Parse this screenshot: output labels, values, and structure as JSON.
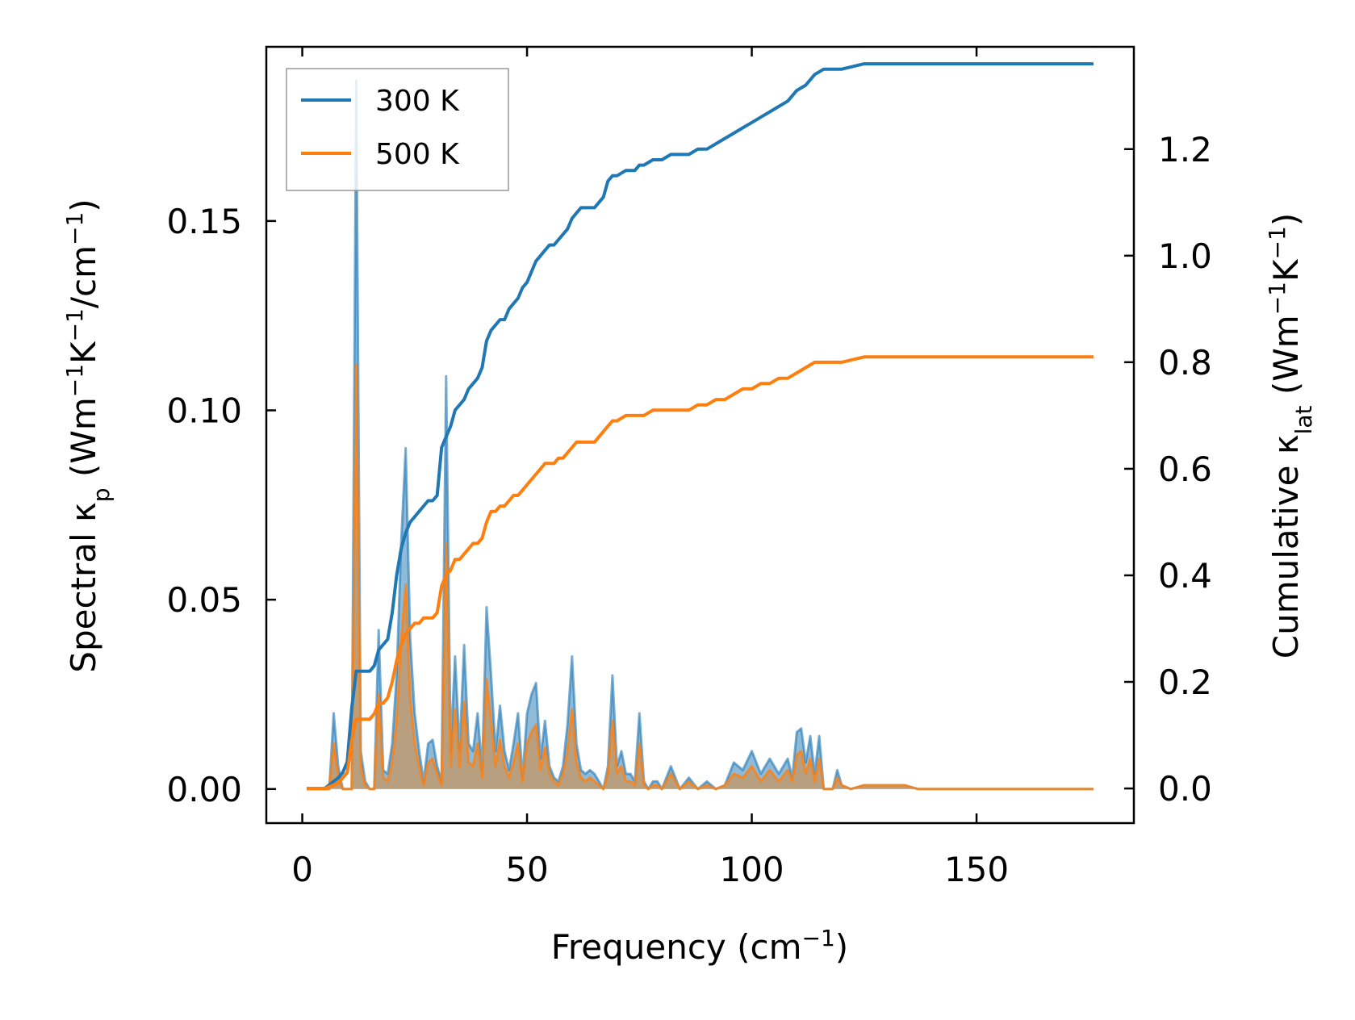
{
  "chart_data": {
    "type": "line",
    "title": "",
    "xlabel": "Frequency (cm⁻¹)",
    "ylabel_left": "Spectral κₚ (Wm⁻¹K⁻¹/cm⁻¹)",
    "ylabel_right": "Cumulative κ_lat (Wm⁻¹K⁻¹)",
    "xlim": [
      -8,
      185
    ],
    "ylim_left": [
      -0.009,
      0.196
    ],
    "ylim_right": [
      -0.065,
      1.392
    ],
    "xticks": [
      0,
      50,
      100,
      150
    ],
    "yticks_left": [
      0.0,
      0.05,
      0.1,
      0.15
    ],
    "yticks_right": [
      0.0,
      0.2,
      0.4,
      0.6,
      0.8,
      1.0,
      1.2
    ],
    "xtick_labels": [
      "0",
      "50",
      "100",
      "150"
    ],
    "ytick_labels_left": [
      "0.00",
      "0.05",
      "0.10",
      "0.15"
    ],
    "ytick_labels_right": [
      "0.0",
      "0.2",
      "0.4",
      "0.6",
      "0.8",
      "1.0",
      "1.2"
    ],
    "legend": {
      "location": "top-left",
      "entries": [
        "300 K",
        "500 K"
      ]
    },
    "colors": {
      "300K": "#1f77b4",
      "500K": "#ff7f0e",
      "fill_overlap": "#bf9a6e"
    },
    "spectral_x": [
      1,
      5,
      6,
      7,
      8,
      9,
      10,
      11,
      12,
      13,
      14,
      15,
      16,
      17,
      18,
      19,
      20,
      21,
      22,
      23,
      24,
      25,
      26,
      27,
      28,
      29,
      30,
      31,
      32,
      33,
      34,
      35,
      36,
      37,
      38,
      39,
      40,
      41,
      42,
      43,
      44,
      45,
      46,
      47,
      48,
      49,
      50,
      51,
      52,
      53,
      54,
      55,
      56,
      57,
      58,
      59,
      60,
      61,
      62,
      63,
      64,
      65,
      66,
      67,
      68,
      69,
      70,
      71,
      72,
      73,
      74,
      75,
      76,
      77,
      78,
      79,
      80,
      82,
      84,
      86,
      88,
      90,
      92,
      94,
      96,
      98,
      100,
      102,
      104,
      106,
      108,
      109,
      110,
      111,
      112,
      113,
      114,
      115,
      116,
      117,
      118,
      119,
      120,
      122,
      125,
      128,
      131,
      134,
      137,
      140,
      150,
      160,
      170,
      176
    ],
    "spectral_300K": [
      0.0,
      0.0,
      0.0,
      0.02,
      0.006,
      0.0,
      0.0,
      0.0,
      0.187,
      0.01,
      0.002,
      0.0,
      0.0,
      0.042,
      0.005,
      0.004,
      0.012,
      0.03,
      0.065,
      0.09,
      0.04,
      0.02,
      0.01,
      0.002,
      0.012,
      0.013,
      0.006,
      0.002,
      0.109,
      0.01,
      0.035,
      0.01,
      0.038,
      0.012,
      0.01,
      0.02,
      0.005,
      0.048,
      0.03,
      0.01,
      0.022,
      0.01,
      0.005,
      0.012,
      0.02,
      0.003,
      0.02,
      0.025,
      0.028,
      0.008,
      0.018,
      0.006,
      0.003,
      0.002,
      0.006,
      0.017,
      0.035,
      0.012,
      0.005,
      0.004,
      0.005,
      0.004,
      0.002,
      0.0,
      0.006,
      0.03,
      0.006,
      0.01,
      0.004,
      0.004,
      0.002,
      0.02,
      0.002,
      0.0,
      0.002,
      0.002,
      0.0,
      0.006,
      0.0,
      0.003,
      0.0,
      0.002,
      0.0,
      0.001,
      0.007,
      0.005,
      0.01,
      0.004,
      0.008,
      0.004,
      0.008,
      0.003,
      0.015,
      0.016,
      0.007,
      0.014,
      0.004,
      0.014,
      0.0,
      0.0,
      0.0,
      0.005,
      0.001,
      0.0,
      0.001,
      0.001,
      0.001,
      0.001,
      0.0,
      0.0,
      0.0,
      0.0,
      0.0,
      0.0
    ],
    "spectral_500K": [
      0.0,
      0.0,
      0.0,
      0.012,
      0.003,
      0.0,
      0.0,
      0.0,
      0.112,
      0.006,
      0.001,
      0.0,
      0.0,
      0.025,
      0.003,
      0.002,
      0.007,
      0.018,
      0.039,
      0.054,
      0.024,
      0.012,
      0.006,
      0.001,
      0.007,
      0.008,
      0.004,
      0.001,
      0.065,
      0.006,
      0.021,
      0.006,
      0.023,
      0.007,
      0.006,
      0.012,
      0.003,
      0.029,
      0.018,
      0.006,
      0.013,
      0.006,
      0.003,
      0.007,
      0.012,
      0.002,
      0.012,
      0.015,
      0.017,
      0.005,
      0.011,
      0.004,
      0.002,
      0.001,
      0.004,
      0.01,
      0.021,
      0.007,
      0.003,
      0.002,
      0.003,
      0.002,
      0.001,
      0.0,
      0.004,
      0.018,
      0.004,
      0.006,
      0.002,
      0.002,
      0.001,
      0.012,
      0.001,
      0.0,
      0.001,
      0.001,
      0.0,
      0.004,
      0.0,
      0.002,
      0.0,
      0.001,
      0.0,
      0.001,
      0.004,
      0.003,
      0.006,
      0.002,
      0.005,
      0.002,
      0.005,
      0.002,
      0.009,
      0.01,
      0.004,
      0.008,
      0.002,
      0.008,
      0.0,
      0.0,
      0.0,
      0.003,
      0.001,
      0.0,
      0.001,
      0.001,
      0.001,
      0.001,
      0.0,
      0.0,
      0.0,
      0.0,
      0.0,
      0.0
    ],
    "cumulative_x": [
      1,
      5,
      8,
      9,
      10,
      11,
      12,
      15,
      16,
      17,
      18,
      19,
      20,
      21,
      22,
      23,
      24,
      25,
      26,
      27,
      28,
      29,
      30,
      31,
      32,
      33,
      34,
      35,
      36,
      37,
      38,
      39,
      40,
      41,
      42,
      43,
      44,
      45,
      46,
      47,
      48,
      49,
      50,
      51,
      52,
      53,
      54,
      55,
      56,
      57,
      58,
      59,
      60,
      61,
      62,
      63,
      64,
      65,
      66,
      67,
      68,
      69,
      70,
      72,
      74,
      75,
      76,
      78,
      80,
      82,
      84,
      86,
      88,
      90,
      92,
      94,
      96,
      98,
      100,
      102,
      104,
      106,
      108,
      110,
      112,
      114,
      116,
      118,
      120,
      125,
      130,
      135,
      140,
      150,
      160,
      170,
      176
    ],
    "cumulative_300K": [
      0.0,
      0.0,
      0.02,
      0.03,
      0.05,
      0.15,
      0.22,
      0.22,
      0.23,
      0.26,
      0.27,
      0.28,
      0.33,
      0.4,
      0.45,
      0.48,
      0.5,
      0.51,
      0.52,
      0.53,
      0.54,
      0.54,
      0.55,
      0.64,
      0.66,
      0.68,
      0.71,
      0.72,
      0.73,
      0.75,
      0.76,
      0.77,
      0.79,
      0.84,
      0.86,
      0.87,
      0.88,
      0.88,
      0.9,
      0.91,
      0.92,
      0.94,
      0.95,
      0.97,
      0.99,
      1.0,
      1.01,
      1.02,
      1.02,
      1.03,
      1.04,
      1.05,
      1.07,
      1.08,
      1.09,
      1.09,
      1.09,
      1.09,
      1.1,
      1.11,
      1.14,
      1.15,
      1.15,
      1.16,
      1.16,
      1.17,
      1.17,
      1.18,
      1.18,
      1.19,
      1.19,
      1.19,
      1.2,
      1.2,
      1.21,
      1.22,
      1.23,
      1.24,
      1.25,
      1.26,
      1.27,
      1.28,
      1.29,
      1.31,
      1.32,
      1.34,
      1.35,
      1.35,
      1.35,
      1.36,
      1.36,
      1.36,
      1.36,
      1.36,
      1.36,
      1.36,
      1.36
    ],
    "cumulative_500K": [
      0.0,
      0.0,
      0.01,
      0.02,
      0.03,
      0.09,
      0.13,
      0.13,
      0.14,
      0.16,
      0.16,
      0.17,
      0.2,
      0.24,
      0.27,
      0.29,
      0.3,
      0.31,
      0.31,
      0.32,
      0.32,
      0.32,
      0.33,
      0.38,
      0.4,
      0.41,
      0.43,
      0.43,
      0.44,
      0.45,
      0.46,
      0.46,
      0.47,
      0.5,
      0.52,
      0.52,
      0.53,
      0.53,
      0.54,
      0.55,
      0.55,
      0.56,
      0.57,
      0.58,
      0.59,
      0.6,
      0.61,
      0.61,
      0.61,
      0.62,
      0.62,
      0.63,
      0.64,
      0.65,
      0.65,
      0.65,
      0.65,
      0.65,
      0.66,
      0.67,
      0.68,
      0.69,
      0.69,
      0.7,
      0.7,
      0.7,
      0.7,
      0.71,
      0.71,
      0.71,
      0.71,
      0.71,
      0.72,
      0.72,
      0.73,
      0.73,
      0.74,
      0.75,
      0.75,
      0.76,
      0.76,
      0.77,
      0.77,
      0.78,
      0.79,
      0.8,
      0.8,
      0.8,
      0.8,
      0.81,
      0.81,
      0.81,
      0.81,
      0.81,
      0.81,
      0.81,
      0.81
    ]
  }
}
